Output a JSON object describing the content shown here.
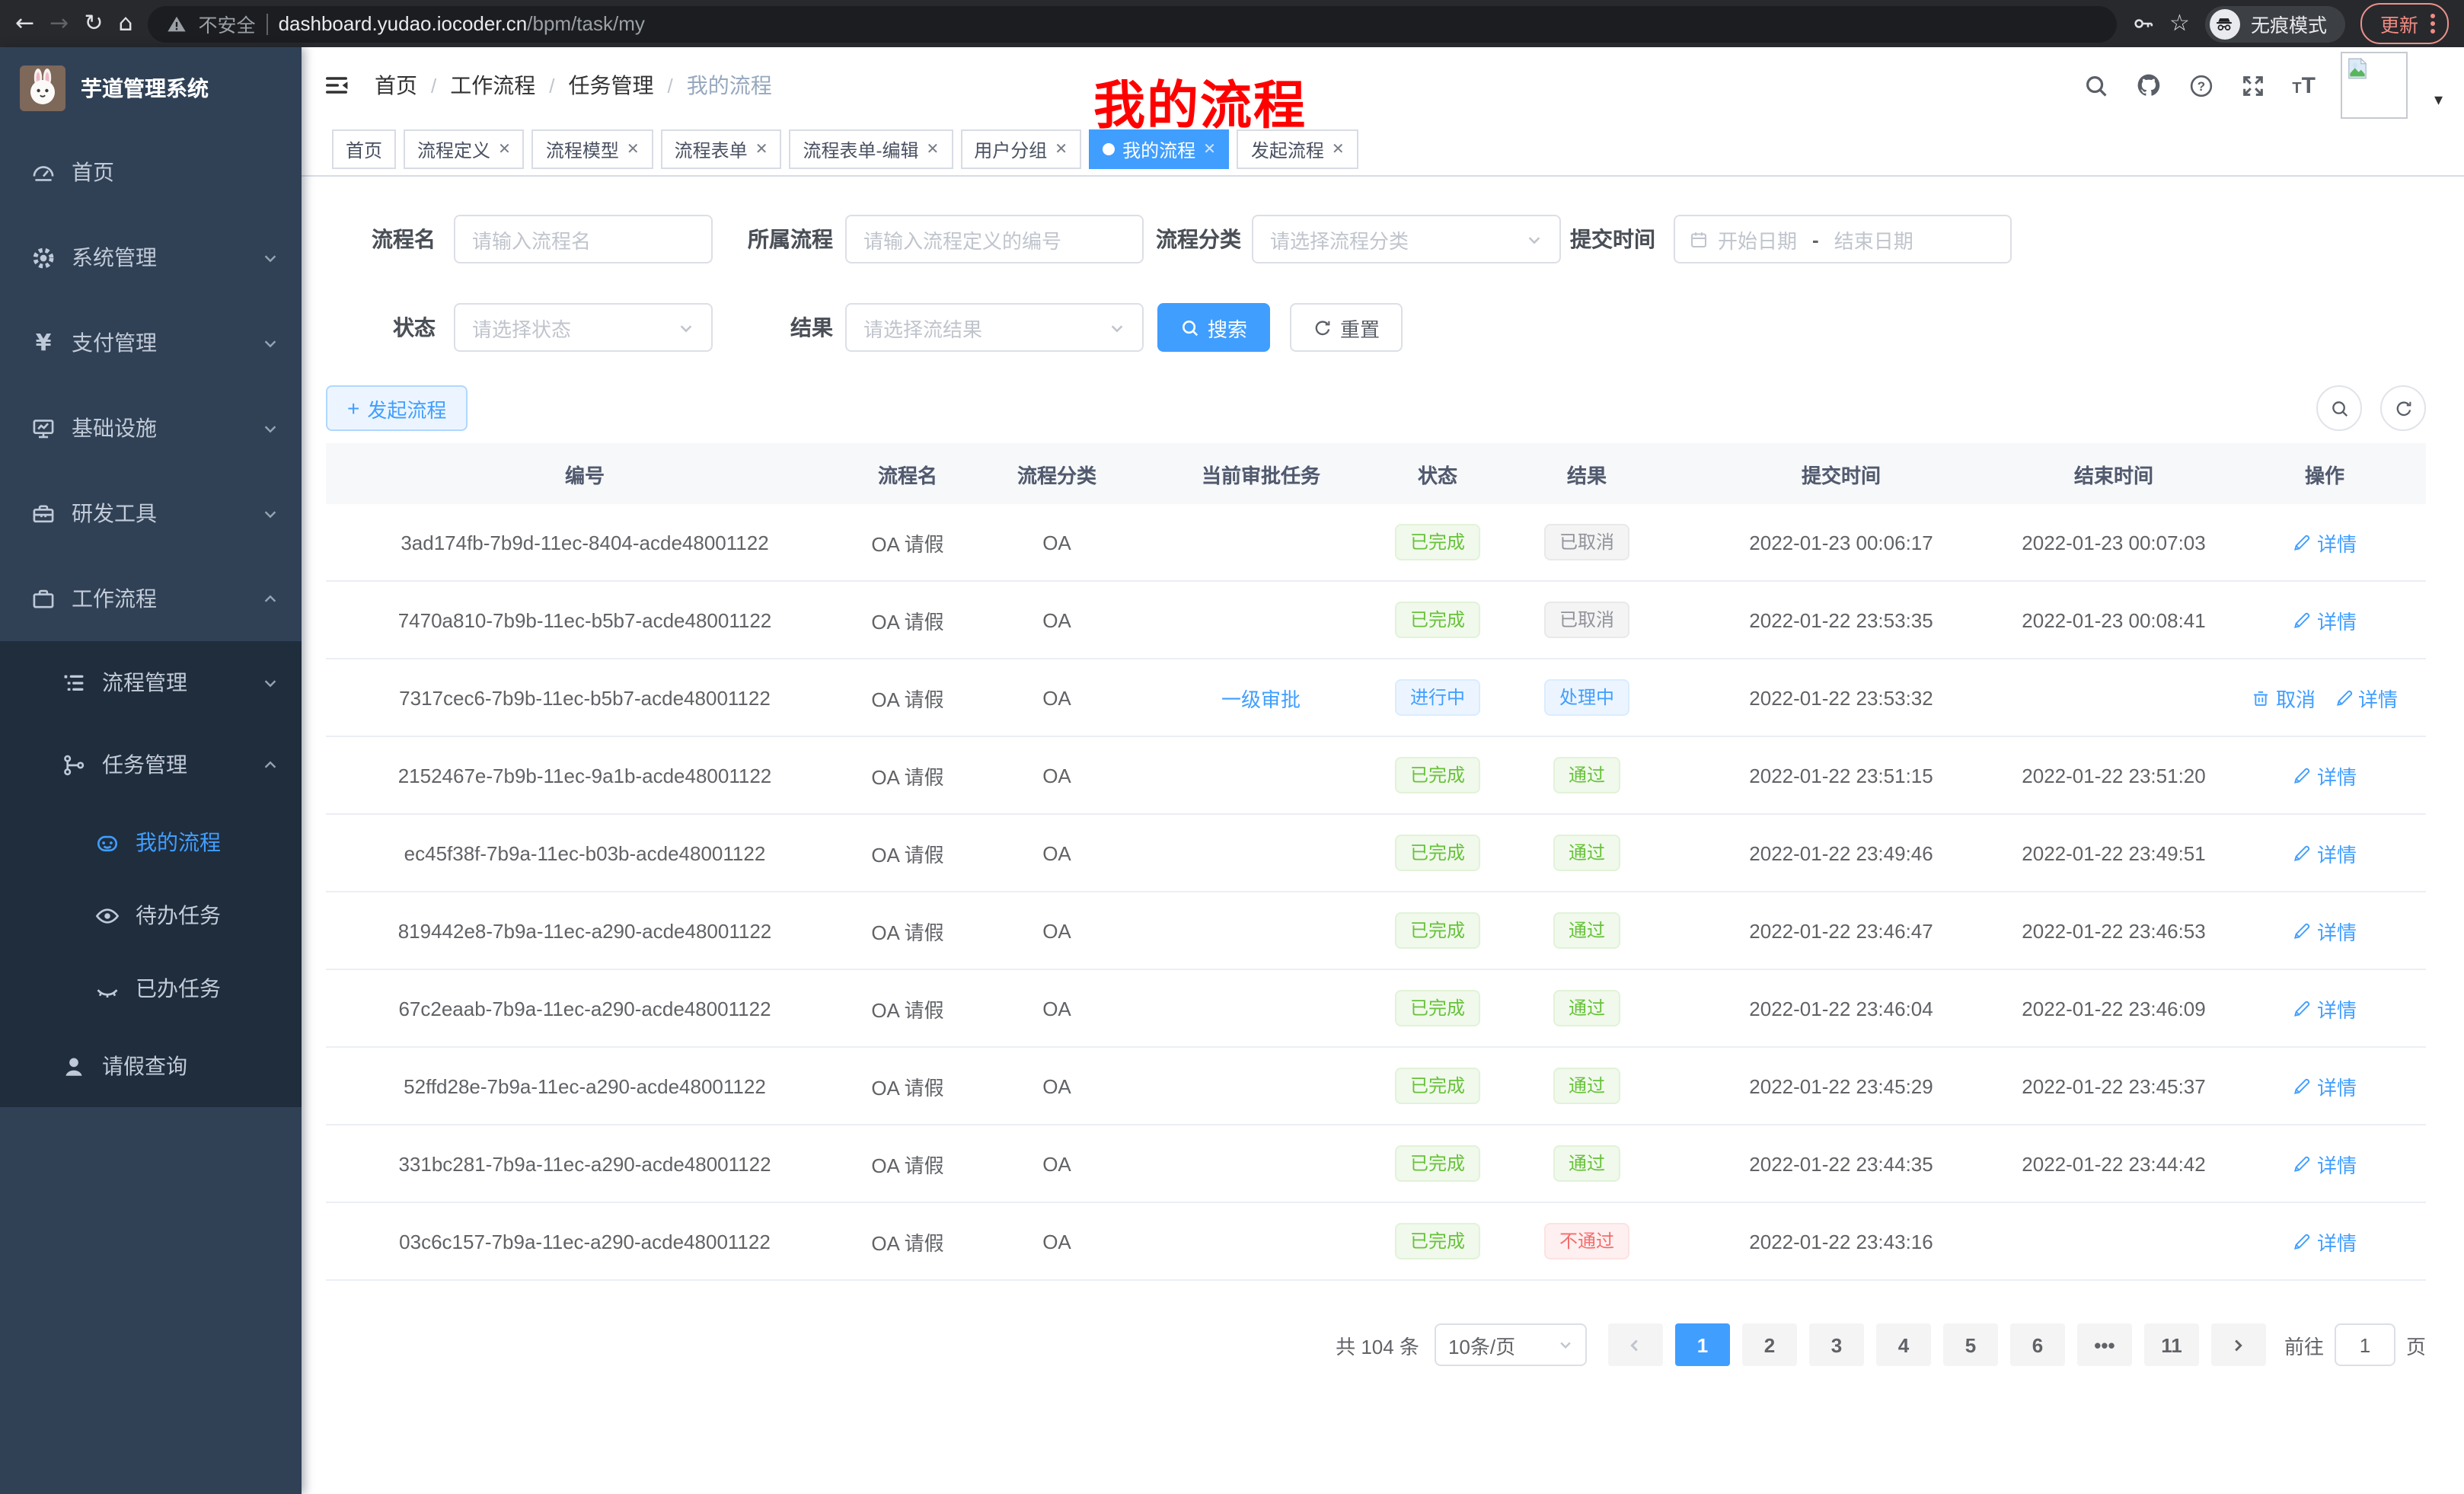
{
  "browser": {
    "security_label": "不安全",
    "url_host": "dashboard.yudao.iocoder.cn",
    "url_path": "/bpm/task/my",
    "incognito_label": "无痕模式",
    "update_label": "更新"
  },
  "sidebar": {
    "title": "芋道管理系统",
    "menu": [
      {
        "name": "sidebar-item-home",
        "label": "首页",
        "icon": "dashboard",
        "level": 1
      },
      {
        "name": "sidebar-item-system",
        "label": "系统管理",
        "icon": "gear",
        "level": 1,
        "chevron": "down"
      },
      {
        "name": "sidebar-item-payment",
        "label": "支付管理",
        "icon": "yen",
        "level": 1,
        "chevron": "down"
      },
      {
        "name": "sidebar-item-infrastructure",
        "label": "基础设施",
        "icon": "monitor",
        "level": 1,
        "chevron": "down"
      },
      {
        "name": "sidebar-item-dev-tools",
        "label": "研发工具",
        "icon": "toolbox",
        "level": 1,
        "chevron": "down"
      },
      {
        "name": "sidebar-item-workflow",
        "label": "工作流程",
        "icon": "briefcase",
        "level": 1,
        "chevron": "up"
      },
      {
        "name": "sidebar-item-process-mgmt",
        "label": "流程管理",
        "icon": "list",
        "level": 2,
        "chevron": "down"
      },
      {
        "name": "sidebar-item-task-mgmt",
        "label": "任务管理",
        "icon": "tree",
        "level": 2,
        "chevron": "up"
      },
      {
        "name": "sidebar-item-my-process",
        "label": "我的流程",
        "icon": "robot",
        "level": 3,
        "active": true
      },
      {
        "name": "sidebar-item-todo-tasks",
        "label": "待办任务",
        "icon": "eye",
        "level": 3
      },
      {
        "name": "sidebar-item-done-tasks",
        "label": "已办任务",
        "icon": "eye-closed",
        "level": 3
      },
      {
        "name": "sidebar-item-leave-query",
        "label": "请假查询",
        "icon": "user",
        "level": 2
      }
    ]
  },
  "navbar": {
    "breadcrumb": [
      "首页",
      "工作流程",
      "任务管理",
      "我的流程"
    ],
    "annotation": "我的流程"
  },
  "tabs": [
    {
      "name": "tab-home",
      "label": "首页",
      "closable": false,
      "active": false
    },
    {
      "name": "tab-process-def",
      "label": "流程定义",
      "closable": true,
      "active": false
    },
    {
      "name": "tab-process-model",
      "label": "流程模型",
      "closable": true,
      "active": false
    },
    {
      "name": "tab-process-form",
      "label": "流程表单",
      "closable": true,
      "active": false
    },
    {
      "name": "tab-process-form-edit",
      "label": "流程表单-编辑",
      "closable": true,
      "active": false
    },
    {
      "name": "tab-user-group",
      "label": "用户分组",
      "closable": true,
      "active": false
    },
    {
      "name": "tab-my-process",
      "label": "我的流程",
      "closable": true,
      "active": true
    },
    {
      "name": "tab-start-process",
      "label": "发起流程",
      "closable": true,
      "active": false
    }
  ],
  "filters": {
    "name_label": "流程名",
    "name_placeholder": "请输入流程名",
    "process_label": "所属流程",
    "process_placeholder": "请输入流程定义的编号",
    "category_label": "流程分类",
    "category_placeholder": "请选择流程分类",
    "time_label": "提交时间",
    "start_placeholder": "开始日期",
    "range_separator": "-",
    "end_placeholder": "结束日期",
    "status_label": "状态",
    "status_placeholder": "请选择状态",
    "result_label": "结果",
    "result_placeholder": "请选择流结果",
    "search_label": "搜索",
    "reset_label": "重置"
  },
  "toolbar": {
    "create_label": "发起流程"
  },
  "table": {
    "headers": [
      "编号",
      "流程名",
      "流程分类",
      "当前审批任务",
      "状态",
      "结果",
      "提交时间",
      "结束时间",
      "操作"
    ],
    "rows": [
      {
        "id": "3ad174fb-7b9d-11ec-8404-acde48001122",
        "name": "OA 请假",
        "category": "OA",
        "task": "",
        "status": {
          "label": "已完成",
          "type": "success"
        },
        "result": {
          "label": "已取消",
          "type": "info"
        },
        "submit_time": "2022-01-23 00:06:17",
        "end_time": "2022-01-23 00:07:03",
        "actions": [
          {
            "label": "详情",
            "icon": "pencil"
          }
        ]
      },
      {
        "id": "7470a810-7b9b-11ec-b5b7-acde48001122",
        "name": "OA 请假",
        "category": "OA",
        "task": "",
        "status": {
          "label": "已完成",
          "type": "success"
        },
        "result": {
          "label": "已取消",
          "type": "info"
        },
        "submit_time": "2022-01-22 23:53:35",
        "end_time": "2022-01-23 00:08:41",
        "actions": [
          {
            "label": "详情",
            "icon": "pencil"
          }
        ]
      },
      {
        "id": "7317cec6-7b9b-11ec-b5b7-acde48001122",
        "name": "OA 请假",
        "category": "OA",
        "task": "一级审批",
        "status": {
          "label": "进行中",
          "type": "primary"
        },
        "result": {
          "label": "处理中",
          "type": "primary"
        },
        "submit_time": "2022-01-22 23:53:32",
        "end_time": "",
        "actions": [
          {
            "label": "取消",
            "icon": "trash"
          },
          {
            "label": "详情",
            "icon": "pencil"
          }
        ]
      },
      {
        "id": "2152467e-7b9b-11ec-9a1b-acde48001122",
        "name": "OA 请假",
        "category": "OA",
        "task": "",
        "status": {
          "label": "已完成",
          "type": "success"
        },
        "result": {
          "label": "通过",
          "type": "success"
        },
        "submit_time": "2022-01-22 23:51:15",
        "end_time": "2022-01-22 23:51:20",
        "actions": [
          {
            "label": "详情",
            "icon": "pencil"
          }
        ]
      },
      {
        "id": "ec45f38f-7b9a-11ec-b03b-acde48001122",
        "name": "OA 请假",
        "category": "OA",
        "task": "",
        "status": {
          "label": "已完成",
          "type": "success"
        },
        "result": {
          "label": "通过",
          "type": "success"
        },
        "submit_time": "2022-01-22 23:49:46",
        "end_time": "2022-01-22 23:49:51",
        "actions": [
          {
            "label": "详情",
            "icon": "pencil"
          }
        ]
      },
      {
        "id": "819442e8-7b9a-11ec-a290-acde48001122",
        "name": "OA 请假",
        "category": "OA",
        "task": "",
        "status": {
          "label": "已完成",
          "type": "success"
        },
        "result": {
          "label": "通过",
          "type": "success"
        },
        "submit_time": "2022-01-22 23:46:47",
        "end_time": "2022-01-22 23:46:53",
        "actions": [
          {
            "label": "详情",
            "icon": "pencil"
          }
        ]
      },
      {
        "id": "67c2eaab-7b9a-11ec-a290-acde48001122",
        "name": "OA 请假",
        "category": "OA",
        "task": "",
        "status": {
          "label": "已完成",
          "type": "success"
        },
        "result": {
          "label": "通过",
          "type": "success"
        },
        "submit_time": "2022-01-22 23:46:04",
        "end_time": "2022-01-22 23:46:09",
        "actions": [
          {
            "label": "详情",
            "icon": "pencil"
          }
        ]
      },
      {
        "id": "52ffd28e-7b9a-11ec-a290-acde48001122",
        "name": "OA 请假",
        "category": "OA",
        "task": "",
        "status": {
          "label": "已完成",
          "type": "success"
        },
        "result": {
          "label": "通过",
          "type": "success"
        },
        "submit_time": "2022-01-22 23:45:29",
        "end_time": "2022-01-22 23:45:37",
        "actions": [
          {
            "label": "详情",
            "icon": "pencil"
          }
        ]
      },
      {
        "id": "331bc281-7b9a-11ec-a290-acde48001122",
        "name": "OA 请假",
        "category": "OA",
        "task": "",
        "status": {
          "label": "已完成",
          "type": "success"
        },
        "result": {
          "label": "通过",
          "type": "success"
        },
        "submit_time": "2022-01-22 23:44:35",
        "end_time": "2022-01-22 23:44:42",
        "actions": [
          {
            "label": "详情",
            "icon": "pencil"
          }
        ]
      },
      {
        "id": "03c6c157-7b9a-11ec-a290-acde48001122",
        "name": "OA 请假",
        "category": "OA",
        "task": "",
        "status": {
          "label": "已完成",
          "type": "success"
        },
        "result": {
          "label": "不通过",
          "type": "danger"
        },
        "submit_time": "2022-01-22 23:43:16",
        "end_time": "",
        "actions": [
          {
            "label": "详情",
            "icon": "pencil"
          }
        ]
      }
    ]
  },
  "pagination": {
    "total": "共 104 条",
    "page_size": "10条/页",
    "pages": [
      "1",
      "2",
      "3",
      "4",
      "5",
      "6",
      "•••",
      "11"
    ],
    "active_page": "1",
    "goto_label": "前往",
    "goto_value": "1",
    "page_unit": "页"
  },
  "colors": {
    "primary": "#409eff",
    "success": "#67c23a",
    "danger": "#f56c6c",
    "info": "#909399",
    "sidebar": "#304156",
    "sidebar_sub": "#1f2d3d"
  }
}
